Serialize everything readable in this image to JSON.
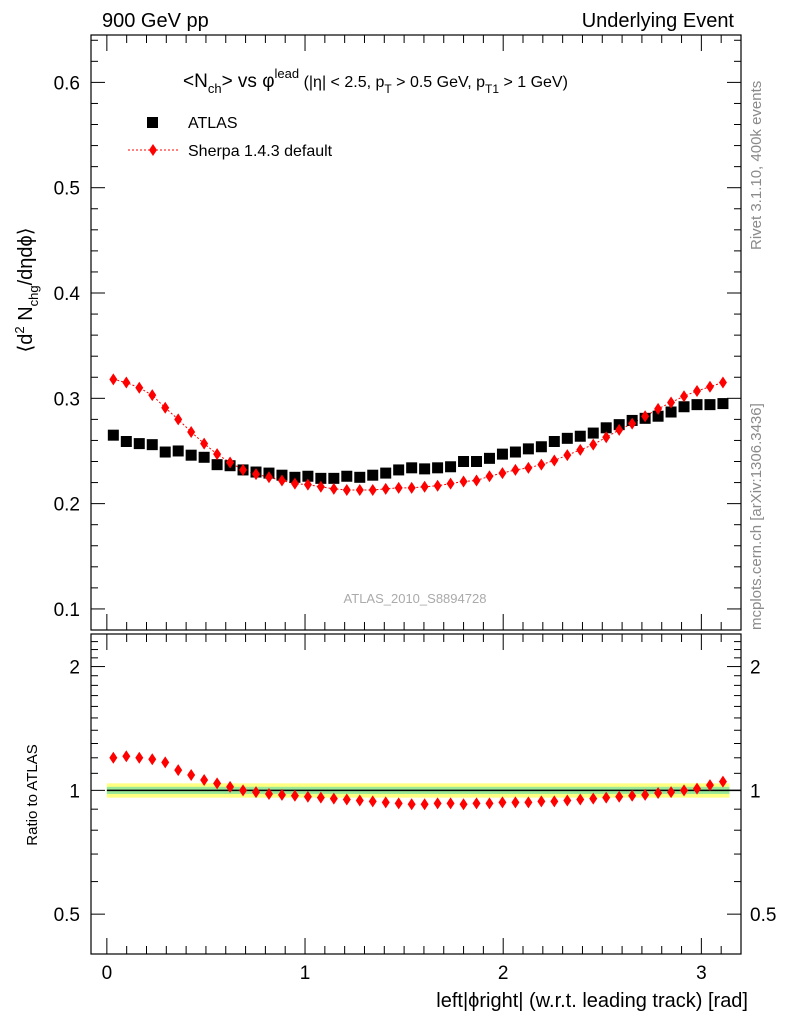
{
  "header": {
    "left": "900 GeV pp",
    "right": "Underlying Event"
  },
  "side_text": {
    "rivet": "Rivet 3.1.10,  400k events",
    "mcplots": "mcplots.cern.ch [arXiv:1306.3436]"
  },
  "title": {
    "base": "<N",
    "sub1": "ch",
    "mid": "> vs φ",
    "sup1": "lead",
    "paren_open": " (|η| < 2.5, p",
    "sub2": "T",
    "mid2": " > 0.5 GeV, p",
    "sub3": "T1",
    "paren_close": " > 1 GeV)"
  },
  "analysis_id": "ATLAS_2010_S8894728",
  "axes": {
    "ylabel_main": "⟨d² N_chg/dηdϕ⟩",
    "ylabel_main_parts": {
      "a": "⟨d",
      "b": "2",
      "c": " N",
      "d": "chg",
      "e": "/dηdϕ⟩"
    },
    "ylabel_ratio": "Ratio to ATLAS",
    "xlabel": "left|ϕright| (w.r.t. leading track) [rad]",
    "xlabel_parts": {
      "a": "left|ϕright| (w.r.t. leading track) [rad]"
    }
  },
  "legend": {
    "atlas": "ATLAS",
    "sherpa": "Sherpa 1.4.3 default"
  },
  "colors": {
    "data": "#000000",
    "mc": "#ff0000",
    "band_outer": "#ffff80",
    "band_inner": "#98e898"
  },
  "chart_data": [
    {
      "type": "scatter",
      "panel": "main",
      "x": [
        0.0327,
        0.0982,
        0.1636,
        0.2291,
        0.2945,
        0.36,
        0.4254,
        0.4909,
        0.5563,
        0.6218,
        0.6872,
        0.7527,
        0.8181,
        0.8836,
        0.949,
        1.0145,
        1.0799,
        1.1454,
        1.2108,
        1.2763,
        1.3417,
        1.4072,
        1.4726,
        1.5381,
        1.6035,
        1.669,
        1.7344,
        1.7999,
        1.8653,
        1.9308,
        1.9962,
        2.0617,
        2.1271,
        2.1926,
        2.258,
        2.3235,
        2.3889,
        2.4544,
        2.5198,
        2.5853,
        2.6507,
        2.7162,
        2.7816,
        2.8471,
        2.9125,
        2.978,
        3.0434,
        3.1089
      ],
      "series": [
        {
          "name": "ATLAS",
          "marker": "square",
          "values": [
            0.265,
            0.259,
            0.257,
            0.256,
            0.249,
            0.25,
            0.246,
            0.244,
            0.237,
            0.236,
            0.232,
            0.23,
            0.229,
            0.227,
            0.225,
            0.226,
            0.224,
            0.224,
            0.226,
            0.225,
            0.227,
            0.229,
            0.232,
            0.234,
            0.233,
            0.234,
            0.235,
            0.24,
            0.24,
            0.243,
            0.247,
            0.249,
            0.252,
            0.254,
            0.259,
            0.262,
            0.264,
            0.267,
            0.272,
            0.275,
            0.279,
            0.281,
            0.283,
            0.287,
            0.292,
            0.294,
            0.294,
            0.295
          ]
        },
        {
          "name": "Sherpa 1.4.3 default",
          "marker": "diamond",
          "values": [
            0.318,
            0.315,
            0.31,
            0.303,
            0.291,
            0.28,
            0.268,
            0.257,
            0.247,
            0.239,
            0.232,
            0.228,
            0.225,
            0.222,
            0.219,
            0.218,
            0.216,
            0.214,
            0.213,
            0.213,
            0.213,
            0.214,
            0.215,
            0.215,
            0.216,
            0.217,
            0.219,
            0.221,
            0.222,
            0.226,
            0.229,
            0.232,
            0.234,
            0.237,
            0.241,
            0.246,
            0.251,
            0.256,
            0.263,
            0.27,
            0.276,
            0.283,
            0.29,
            0.296,
            0.302,
            0.307,
            0.311,
            0.315
          ]
        }
      ],
      "ylabel": "⟨d² N_chg/dηdϕ⟩",
      "xlim": [
        -0.08,
        3.2
      ],
      "ylim": [
        0.08,
        0.645
      ],
      "yticks": [
        0.1,
        0.2,
        0.3,
        0.4,
        0.5,
        0.6
      ]
    },
    {
      "type": "scatter",
      "panel": "ratio",
      "x": [
        0.0327,
        0.0982,
        0.1636,
        0.2291,
        0.2945,
        0.36,
        0.4254,
        0.4909,
        0.5563,
        0.6218,
        0.6872,
        0.7527,
        0.8181,
        0.8836,
        0.949,
        1.0145,
        1.0799,
        1.1454,
        1.2108,
        1.2763,
        1.3417,
        1.4072,
        1.4726,
        1.5381,
        1.6035,
        1.669,
        1.7344,
        1.7999,
        1.8653,
        1.9308,
        1.9962,
        2.0617,
        2.1271,
        2.1926,
        2.258,
        2.3235,
        2.3889,
        2.4544,
        2.5198,
        2.5853,
        2.6507,
        2.7162,
        2.7816,
        2.8471,
        2.9125,
        2.978,
        3.0434,
        3.1089
      ],
      "series": [
        {
          "name": "Sherpa 1.4.3 default",
          "marker": "diamond",
          "values": [
            1.2,
            1.21,
            1.2,
            1.19,
            1.17,
            1.12,
            1.09,
            1.06,
            1.04,
            1.02,
            1.0,
            0.99,
            0.98,
            0.975,
            0.97,
            0.965,
            0.96,
            0.955,
            0.95,
            0.945,
            0.94,
            0.935,
            0.93,
            0.925,
            0.925,
            0.93,
            0.93,
            0.925,
            0.93,
            0.93,
            0.935,
            0.935,
            0.935,
            0.94,
            0.94,
            0.945,
            0.95,
            0.955,
            0.96,
            0.965,
            0.97,
            0.975,
            0.985,
            0.99,
            1.0,
            1.01,
            1.03,
            1.05
          ]
        }
      ],
      "ylabel": "Ratio to ATLAS",
      "xlabel": "left|ϕright| (w.r.t. leading track) [rad]",
      "xlim": [
        -0.08,
        3.2
      ],
      "ylim": [
        0.4,
        2.4
      ],
      "yscale": "log",
      "yticks": [
        0.5,
        1,
        2
      ],
      "xticks": [
        0,
        1,
        2,
        3
      ],
      "band": {
        "inner": 0.02,
        "outer": 0.04
      }
    }
  ]
}
